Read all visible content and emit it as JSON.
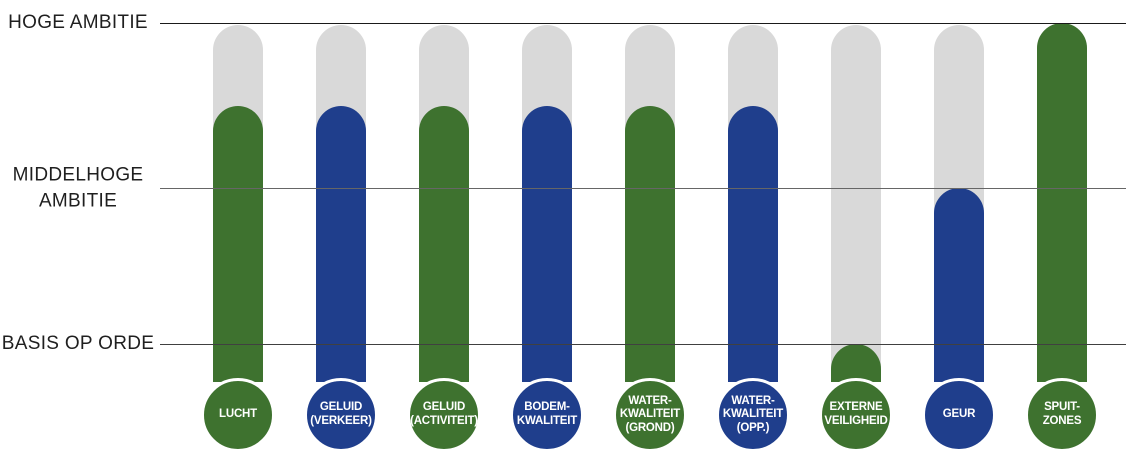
{
  "chart_data": {
    "type": "bar",
    "subtype": "thermometer-ambition-chart",
    "title": "",
    "legend": "none",
    "grid": "horizontal-level-lines",
    "value_scale": {
      "min": 1,
      "max": 3,
      "description": "1 = BASIS OP ORDE, 2 = MIDDELHOGE AMBITIE, 3 = HOGE AMBITIE; bars 1-6 sit halfway between level 2 and level 3"
    },
    "levels": [
      {
        "value": 3,
        "label": "HOGE AMBITIE",
        "label_lines": [
          "HOGE AMBITIE"
        ],
        "line_color": "#1a1a1a"
      },
      {
        "value": 2,
        "label": "MIDDELHOGE AMBITIE",
        "label_lines": [
          "MIDDELHOGE",
          "AMBITIE"
        ],
        "line_color": "#666666"
      },
      {
        "value": 1,
        "label": "BASIS OP ORDE",
        "label_lines": [
          "BASIS OP ORDE"
        ],
        "line_color": "#404040"
      }
    ],
    "categories": [
      "LUCHT",
      "GELUID (VERKEER)",
      "GELUID (ACTIVITEIT)",
      "BODEM-KWALITEIT",
      "WATER-KWALITEIT (GROND)",
      "WATER-KWALITEIT (OPP.)",
      "EXTERNE VEILIGHEID",
      "GEUR",
      "SPUIT-ZONES"
    ],
    "bars": [
      {
        "label_lines": [
          "LUCHT"
        ],
        "value": 2.5,
        "color": "green"
      },
      {
        "label_lines": [
          "GELUID",
          "(VERKEER)"
        ],
        "value": 2.5,
        "color": "blue"
      },
      {
        "label_lines": [
          "GELUID",
          "(ACTIVITEIT)"
        ],
        "value": 2.5,
        "color": "green"
      },
      {
        "label_lines": [
          "BODEM-",
          "KWALITEIT"
        ],
        "value": 2.5,
        "color": "blue"
      },
      {
        "label_lines": [
          "WATER-",
          "KWALITEIT",
          "(GROND)"
        ],
        "value": 2.5,
        "color": "green"
      },
      {
        "label_lines": [
          "WATER-",
          "KWALITEIT",
          "(OPP.)"
        ],
        "value": 2.5,
        "color": "blue"
      },
      {
        "label_lines": [
          "EXTERNE",
          "VEILIGHEID"
        ],
        "value": 1.0,
        "color": "green"
      },
      {
        "label_lines": [
          "GEUR"
        ],
        "value": 2.0,
        "color": "blue"
      },
      {
        "label_lines": [
          "SPUIT-",
          "ZONES"
        ],
        "value": 3.0,
        "color": "green"
      }
    ],
    "colors": {
      "green": "#3E722F",
      "blue": "#1F3E8C",
      "track": "#D9D9D9",
      "circle_border": "#FFFFFF",
      "circle_text": "#FFFFFF",
      "axis_label_text": "#1F1F1F"
    }
  }
}
